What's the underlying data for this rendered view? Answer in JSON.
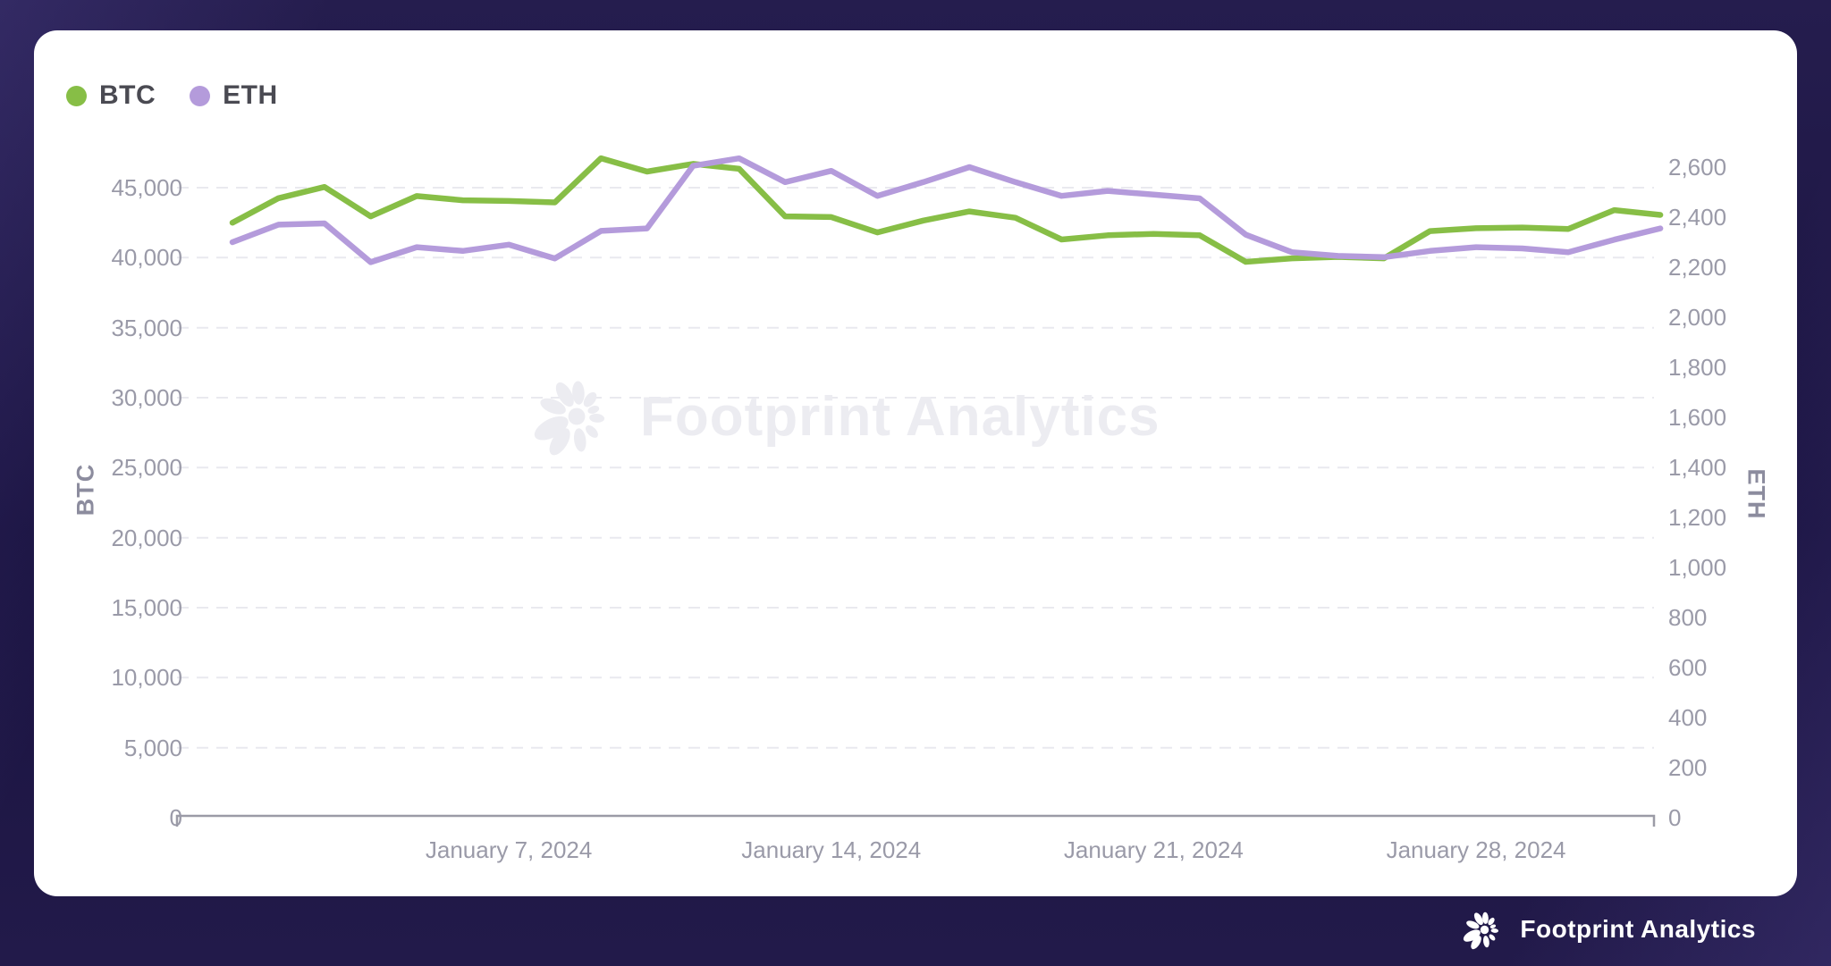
{
  "legend": {
    "items": [
      {
        "label": "BTC",
        "color": "#87BE46"
      },
      {
        "label": "ETH",
        "color": "#B49BDB"
      }
    ]
  },
  "watermark": {
    "text": "Footprint Analytics"
  },
  "footer": {
    "brand": "Footprint Analytics"
  },
  "colors": {
    "background": "#1B1442",
    "card": "#FFFFFF",
    "btc_line": "#87BE46",
    "eth_line": "#B49BDB",
    "tick_text": "#9A9AA8",
    "axis_line": "#9B9BA6",
    "gridline": "#E9E9EF",
    "watermark": "#ECECF1"
  },
  "chart_data": {
    "type": "line",
    "title": "",
    "grid": "horizontal-dashed",
    "legend_position": "top-left",
    "x": [
      "2024-01-01",
      "2024-01-02",
      "2024-01-03",
      "2024-01-04",
      "2024-01-05",
      "2024-01-06",
      "2024-01-07",
      "2024-01-08",
      "2024-01-09",
      "2024-01-10",
      "2024-01-11",
      "2024-01-12",
      "2024-01-13",
      "2024-01-14",
      "2024-01-15",
      "2024-01-16",
      "2024-01-17",
      "2024-01-18",
      "2024-01-19",
      "2024-01-20",
      "2024-01-21",
      "2024-01-22",
      "2024-01-23",
      "2024-01-24",
      "2024-01-25",
      "2024-01-26",
      "2024-01-27",
      "2024-01-28",
      "2024-01-29",
      "2024-01-30",
      "2024-01-31",
      "2024-02-01"
    ],
    "x_axis_labels": [
      {
        "label": "January 7, 2024",
        "day": 7
      },
      {
        "label": "January 14, 2024",
        "day": 14
      },
      {
        "label": "January 21, 2024",
        "day": 21
      },
      {
        "label": "January 28, 2024",
        "day": 28
      }
    ],
    "left_axis": {
      "name": "BTC",
      "range": [
        0,
        45000
      ],
      "tick_values": [
        0,
        5000,
        10000,
        15000,
        20000,
        25000,
        30000,
        35000,
        40000,
        45000
      ],
      "ticks": [
        "0",
        "5,000",
        "10,000",
        "15,000",
        "20,000",
        "25,000",
        "30,000",
        "35,000",
        "40,000",
        "45,000"
      ]
    },
    "right_axis": {
      "name": "ETH",
      "range": [
        0,
        2600
      ],
      "tick_values": [
        0,
        200,
        400,
        600,
        800,
        1000,
        1200,
        1400,
        1600,
        1800,
        2000,
        2200,
        2400,
        2600
      ],
      "ticks": [
        "0",
        "200",
        "400",
        "600",
        "800",
        "1,000",
        "1,200",
        "1,400",
        "1,600",
        "1,800",
        "2,000",
        "2,200",
        "2,400",
        "2,600"
      ]
    },
    "series": [
      {
        "name": "BTC",
        "axis": "left",
        "color": "#87BE46",
        "values": [
          42500,
          44250,
          45050,
          42950,
          44400,
          44100,
          44050,
          43950,
          47100,
          46150,
          46700,
          46350,
          42950,
          42900,
          41800,
          42650,
          43300,
          42850,
          41300,
          41600,
          41700,
          41600,
          39700,
          39950,
          40050,
          39950,
          41900,
          42100,
          42150,
          42050,
          43400,
          43050
        ]
      },
      {
        "name": "ETH",
        "axis": "right",
        "color": "#B49BDB",
        "values": [
          2300,
          2370,
          2375,
          2220,
          2280,
          2265,
          2290,
          2235,
          2345,
          2355,
          2605,
          2635,
          2540,
          2585,
          2485,
          2540,
          2600,
          2540,
          2485,
          2505,
          2490,
          2475,
          2330,
          2260,
          2245,
          2240,
          2265,
          2280,
          2275,
          2260,
          2310,
          2355
        ]
      }
    ]
  }
}
